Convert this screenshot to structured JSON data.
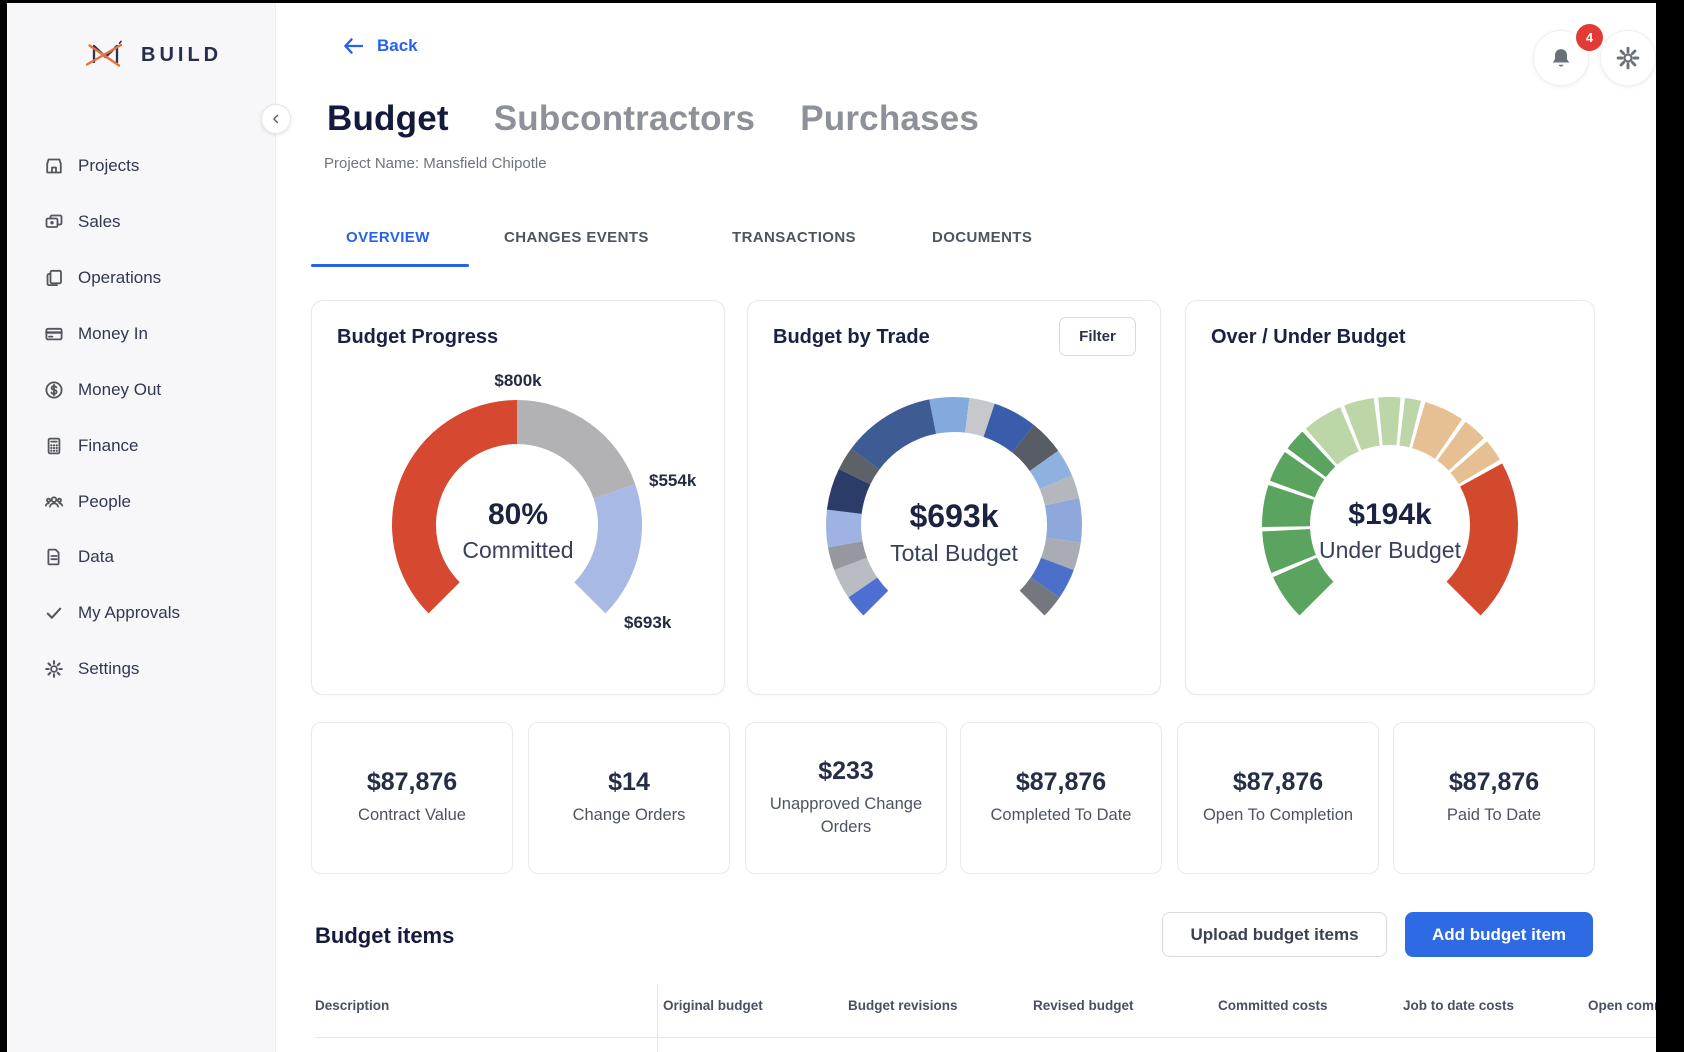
{
  "sidebar": {
    "logo_text": "BUILD",
    "items": [
      {
        "label": "Projects",
        "icon": "storefront-icon"
      },
      {
        "label": "Sales",
        "icon": "sales-cards-icon"
      },
      {
        "label": "Operations",
        "icon": "documents-icon"
      },
      {
        "label": "Money In",
        "icon": "credit-card-icon"
      },
      {
        "label": "Money Out",
        "icon": "dollar-circle-icon"
      },
      {
        "label": "Finance",
        "icon": "calculator-icon"
      },
      {
        "label": "People",
        "icon": "people-icon"
      },
      {
        "label": "Data",
        "icon": "file-icon"
      },
      {
        "label": "My Approvals",
        "icon": "check-icon"
      },
      {
        "label": "Settings",
        "icon": "gear-icon"
      }
    ]
  },
  "topbar": {
    "back_label": "Back",
    "notification_count": "4"
  },
  "header": {
    "page_titles": [
      {
        "label": "Budget",
        "active": true
      },
      {
        "label": "Subcontractors",
        "active": false
      },
      {
        "label": "Purchases",
        "active": false
      }
    ],
    "project_label": "Project Name: Mansfield Chipotle"
  },
  "tabs": {
    "active": "OVERVIEW",
    "items": [
      "OVERVIEW",
      "CHANGES EVENTS",
      "TRANSACTIONS",
      "DOCUMENTS"
    ]
  },
  "chart_data": [
    {
      "type": "gauge",
      "title": "Budget Progress",
      "center_value": "80%",
      "center_label": "Committed",
      "start_angle": -135,
      "end_angle": 135,
      "pad_deg": 0,
      "segments": [
        {
          "label": "committed",
          "value": 135,
          "color": "#d6482f"
        },
        {
          "label": "gap",
          "value": 71,
          "color": "#b2b2b4"
        },
        {
          "label": "uncommitted",
          "value": 64,
          "color": "#a8b9e5"
        }
      ],
      "labels": [
        {
          "text": "$800k",
          "position": "top"
        },
        {
          "text": "$554k",
          "position": "right"
        },
        {
          "text": "$693k",
          "position": "bottom-right"
        }
      ]
    },
    {
      "type": "gauge",
      "title": "Budget by Trade",
      "filter_button_label": "Filter",
      "center_value": "$693k",
      "center_label": "Total Budget",
      "start_angle": -135,
      "end_angle": 135,
      "pad_deg": 0,
      "segments": [
        {
          "label": "trade-1",
          "value": 10,
          "color": "#4e6fd2"
        },
        {
          "label": "trade-2",
          "value": 13,
          "color": "#b9bcc2"
        },
        {
          "label": "trade-3",
          "value": 10,
          "color": "#95999f"
        },
        {
          "label": "trade-4",
          "value": 16,
          "color": "#9fb3e3"
        },
        {
          "label": "trade-5",
          "value": 18,
          "color": "#2c3c69"
        },
        {
          "label": "trade-6",
          "value": 10,
          "color": "#5d6168"
        },
        {
          "label": "trade-7",
          "value": 40,
          "color": "#3e5c93"
        },
        {
          "label": "trade-8",
          "value": 17,
          "color": "#83aadc"
        },
        {
          "label": "trade-9",
          "value": 11,
          "color": "#c6c8cc"
        },
        {
          "label": "trade-10",
          "value": 19,
          "color": "#3a5dab"
        },
        {
          "label": "trade-11",
          "value": 15,
          "color": "#585d65"
        },
        {
          "label": "trade-12",
          "value": 12,
          "color": "#8fb1e0"
        },
        {
          "label": "trade-13",
          "value": 10,
          "color": "#b4b7bc"
        },
        {
          "label": "trade-14",
          "value": 19,
          "color": "#8ea8dc"
        },
        {
          "label": "trade-15",
          "value": 12,
          "color": "#a9acb2"
        },
        {
          "label": "trade-16",
          "value": 13,
          "color": "#4b70c9"
        },
        {
          "label": "trade-17",
          "value": 10,
          "color": "#74777d"
        }
      ]
    },
    {
      "type": "gauge",
      "title": "Over / Under Budget",
      "center_value": "$194k",
      "center_label": "Under Budget",
      "start_angle": -135,
      "end_angle": 135,
      "pad_deg": 2,
      "segments": [
        {
          "label": "under-1",
          "value": 23,
          "color": "#5ba45f"
        },
        {
          "label": "under-2",
          "value": 21,
          "color": "#5ba45f"
        },
        {
          "label": "under-3",
          "value": 21,
          "color": "#5ba45f"
        },
        {
          "label": "under-4",
          "value": 16,
          "color": "#5ba45f"
        },
        {
          "label": "under-5",
          "value": 11,
          "color": "#5ba45f"
        },
        {
          "label": "near-1",
          "value": 20,
          "color": "#bdd6a8"
        },
        {
          "label": "near-2",
          "value": 15,
          "color": "#bdd6a8"
        },
        {
          "label": "near-3",
          "value": 11,
          "color": "#bdd6a8"
        },
        {
          "label": "near-4",
          "value": 8,
          "color": "#bdd6a8"
        },
        {
          "label": "over-1",
          "value": 20,
          "color": "#e6c092"
        },
        {
          "label": "over-2",
          "value": 12,
          "color": "#e6c092"
        },
        {
          "label": "over-3",
          "value": 11,
          "color": "#e6c092"
        },
        {
          "label": "over-4",
          "value": 81,
          "color": "#d2492e"
        }
      ]
    }
  ],
  "stats": [
    {
      "value": "$87,876",
      "label": "Contract Value"
    },
    {
      "value": "$14",
      "label": "Change Orders"
    },
    {
      "value": "$233",
      "label": "Unapproved Change Orders"
    },
    {
      "value": "$87,876",
      "label": "Completed To Date"
    },
    {
      "value": "$87,876",
      "label": "Open To Completion"
    },
    {
      "value": "$87,876",
      "label": "Paid To Date"
    }
  ],
  "budget_items": {
    "title": "Budget items",
    "upload_button_label": "Upload budget items",
    "add_button_label": "Add budget item",
    "columns": [
      "Description",
      "Original budget",
      "Budget revisions",
      "Revised budget",
      "Committed costs",
      "Job to date costs",
      "Open commitments"
    ]
  },
  "colors": {
    "accent_blue": "#2563eb",
    "primary_button_blue": "#2d6ae3",
    "badge_red": "#e23a36",
    "logo_orange": "#e8703a",
    "heading_navy": "#131a3c"
  }
}
